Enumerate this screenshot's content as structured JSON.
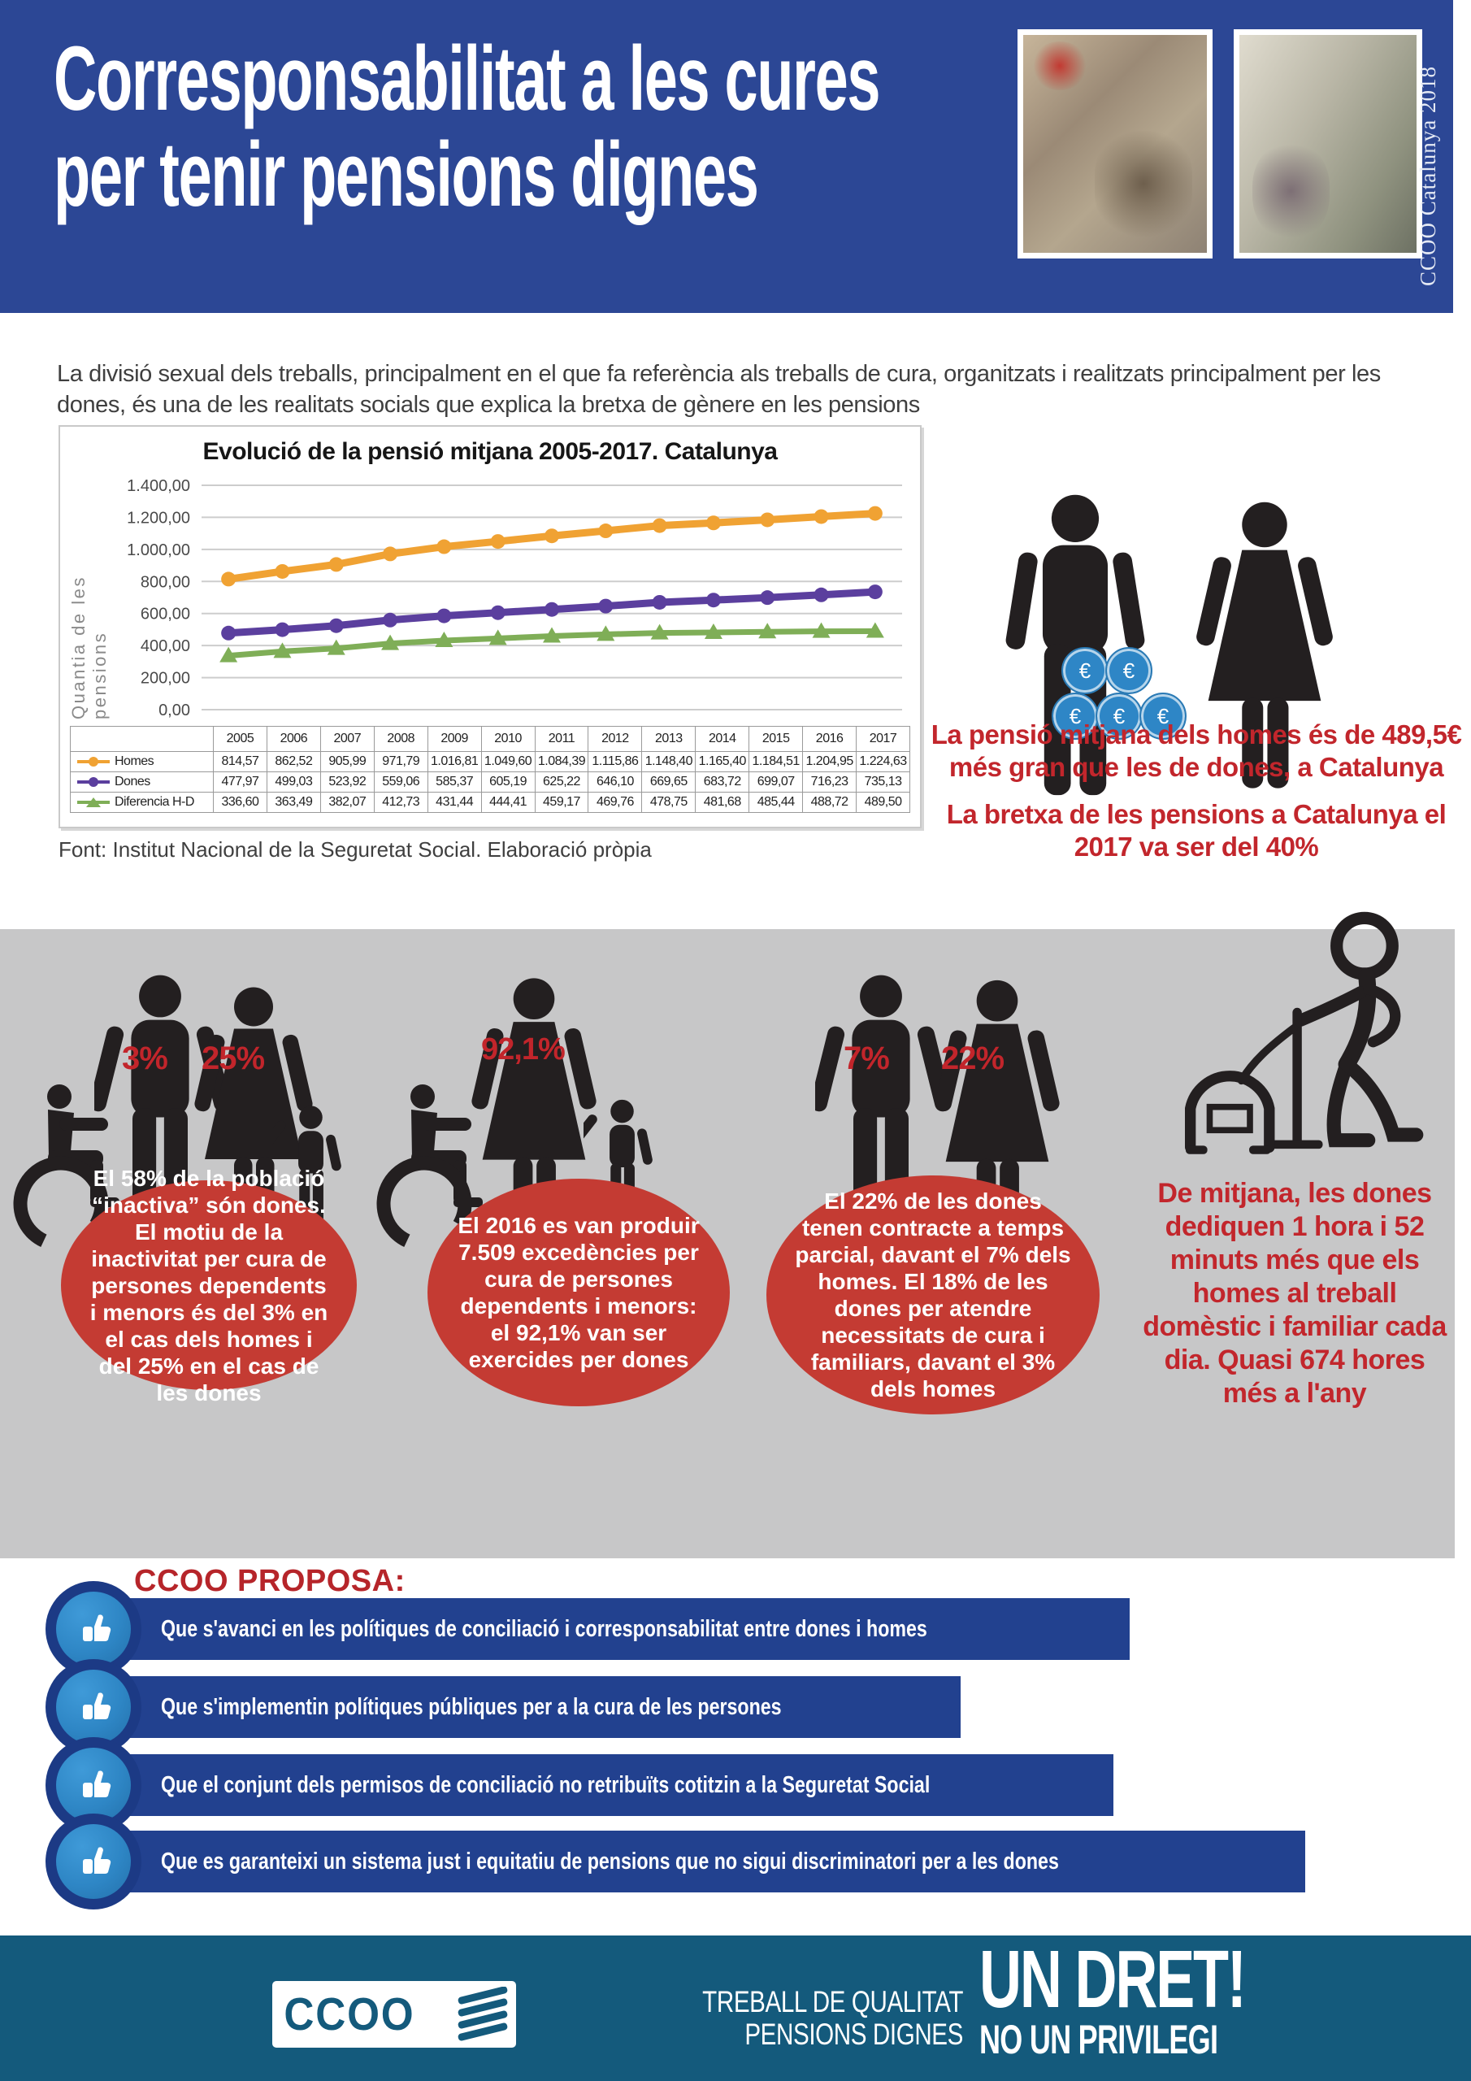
{
  "header": {
    "title_line1": "Corresponsabilitat a les cures",
    "title_line2": "per tenir pensions dignes",
    "credit_vertical": "CCOO Catalunya 2018"
  },
  "intro": {
    "text": "La divisió sexual dels treballs, principalment en el que fa referència als treballs de cura, organitzats i realitzats principalment per les dones, és una de les realitats socials que explica la bretxa de gènere en les pensions"
  },
  "chart_data": {
    "type": "line",
    "title": "Evolució de la pensió mitjana 2005-2017. Catalunya",
    "ylabel": "Quantia de les pensions",
    "xlabel": "",
    "ylim": [
      0,
      1400
    ],
    "ytick_step": 200,
    "ytick_labels": [
      "1.400,00",
      "1.200,00",
      "1.000,00",
      "800,00",
      "600,00",
      "400,00",
      "200,00",
      "0,00"
    ],
    "grid": true,
    "legend_position": "table-left",
    "categories": [
      "2005",
      "2006",
      "2007",
      "2008",
      "2009",
      "2010",
      "2011",
      "2012",
      "2013",
      "2014",
      "2015",
      "2016",
      "2017"
    ],
    "series": [
      {
        "name": "Homes",
        "color": "#f0a233",
        "marker": "circle",
        "values": [
          814.57,
          862.52,
          905.99,
          971.79,
          1016.81,
          1049.6,
          1084.39,
          1115.86,
          1148.4,
          1165.4,
          1184.51,
          1204.95,
          1224.63
        ],
        "labels": [
          "814,57",
          "862,52",
          "905,99",
          "971,79",
          "1.016,81",
          "1.049,60",
          "1.084,39",
          "1.115,86",
          "1.148,40",
          "1.165,40",
          "1.184,51",
          "1.204,95",
          "1.224,63"
        ]
      },
      {
        "name": "Dones",
        "color": "#5b3f9e",
        "marker": "circle",
        "values": [
          477.97,
          499.03,
          523.92,
          559.06,
          585.37,
          605.19,
          625.22,
          646.1,
          669.65,
          683.72,
          699.07,
          716.23,
          735.13
        ],
        "labels": [
          "477,97",
          "499,03",
          "523,92",
          "559,06",
          "585,37",
          "605,19",
          "625,22",
          "646,10",
          "669,65",
          "683,72",
          "699,07",
          "716,23",
          "735,13"
        ]
      },
      {
        "name": "Diferencia H-D",
        "color": "#7fae57",
        "marker": "triangle",
        "values": [
          336.6,
          363.49,
          382.07,
          412.73,
          431.44,
          444.41,
          459.17,
          469.76,
          478.75,
          481.68,
          485.44,
          488.72,
          489.5
        ],
        "labels": [
          "336,60",
          "363,49",
          "382,07",
          "412,73",
          "431,44",
          "444,41",
          "459,17",
          "469,76",
          "478,75",
          "481,68",
          "485,44",
          "488,72",
          "489,50"
        ]
      }
    ]
  },
  "chart_source": {
    "text": "Font: Institut Nacional de la Seguretat Social. Elaboració pròpia"
  },
  "icons": {
    "euro": "€"
  },
  "pension_gap": {
    "line1": "La pensió mitjana dels homes és de 489,5€ més gran que les de dones, a Catalunya",
    "line2": "La bretxa de les pensions a Catalunya el 2017 va ser del 40%"
  },
  "stats": [
    {
      "badges": [
        {
          "label": "3%"
        },
        {
          "label": "25%"
        }
      ],
      "text": "El 58% de la població “inactiva” són dones. El motiu de la inactivitat per cura de persones dependents i menors és del 3% en el cas dels homes i del 25% en el cas de les dones"
    },
    {
      "badges": [
        {
          "label": "92,1%"
        }
      ],
      "text": "El 2016 es van produir 7.509 excedències per cura de persones dependents i menors: el 92,1% van ser exercides per dones"
    },
    {
      "badges": [
        {
          "label": "7%"
        },
        {
          "label": "22%"
        }
      ],
      "text": "El 22% de les dones tenen contracte a temps parcial, davant el 7% dels homes. El 18% de les dones per atendre necessitats de cura i familiars, davant el 3% dels homes"
    },
    {
      "badges": [],
      "text": "De mitjana, les dones dediquen 1 hora i 52 minuts més que els homes al treball domèstic i familiar cada dia. Quasi 674 hores més a l'any"
    }
  ],
  "proposals": {
    "heading": "CCOO PROPOSA:",
    "items": [
      {
        "label": "Que s'avanci en les polítiques de conciliació i corresponsabilitat entre dones i homes"
      },
      {
        "label": "Que s'implementin polítiques públiques per a la cura de les persones"
      },
      {
        "label": "Que el conjunt dels permisos de conciliació no retribuïts cotitzin a la Seguretat Social"
      },
      {
        "label": "Que es garanteixi un sistema just i equitatiu de pensions que no sigui discriminatori per a les dones"
      }
    ]
  },
  "footer": {
    "logo_text": "CCOO",
    "tagline_line1": "TREBALL DE QUALITAT",
    "tagline_line2": "PENSIONS DIGNES",
    "slogan_line1": "UN DRET!",
    "slogan_line2": "NO UN PRIVILEGI"
  }
}
